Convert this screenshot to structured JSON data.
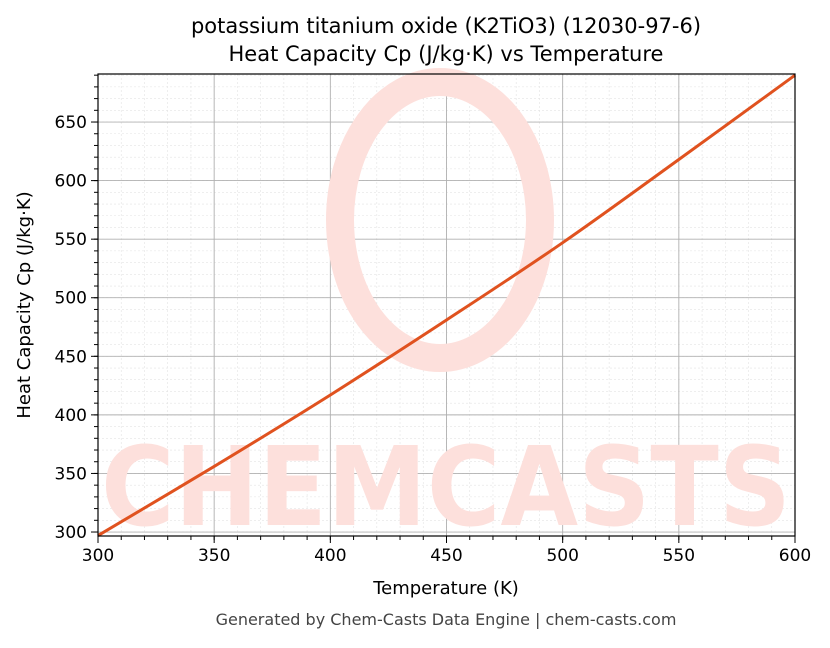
{
  "chart_data": {
    "type": "line",
    "title": "potassium titanium oxide (K2TiO3) (12030-97-6)",
    "subtitle": "Heat Capacity Cp (J/kg·K) vs Temperature",
    "xlabel": "Temperature (K)",
    "ylabel": "Heat Capacity Cp (J/kg·K)",
    "xlim": [
      300,
      600
    ],
    "ylim": [
      296.6,
      691
    ],
    "xticks": [
      300,
      350,
      400,
      450,
      500,
      550,
      600
    ],
    "yticks": [
      300,
      350,
      400,
      450,
      500,
      550,
      600,
      650
    ],
    "grid": true,
    "series": [
      {
        "color": "#e0521f",
        "x": [
          300,
          350,
          400,
          450,
          500,
          550,
          600
        ],
        "y": [
          297,
          356,
          417,
          481,
          547,
          618,
          690
        ]
      }
    ]
  },
  "watermark": "CHEMCASTS",
  "footer": "Generated by Chem-Casts Data Engine | chem-casts.com"
}
